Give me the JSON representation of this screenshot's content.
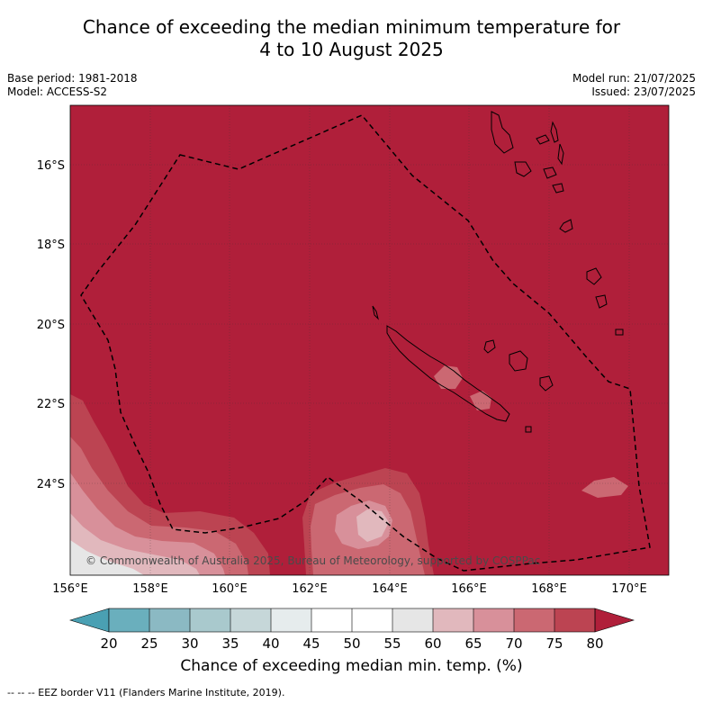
{
  "title": {
    "line1": "Chance of exceeding the median minimum temperature for",
    "line2": "4 to 10 August 2025"
  },
  "meta_left": {
    "base_period": "Base period: 1981-2018",
    "model": "Model: ACCESS-S2"
  },
  "meta_right": {
    "model_run": "Model run: 21/07/2025",
    "issued": "Issued: 23/07/2025"
  },
  "map": {
    "lat_labels": [
      "16°S",
      "18°S",
      "20°S",
      "22°S",
      "24°S"
    ],
    "lon_labels": [
      "156°E",
      "158°E",
      "160°E",
      "162°E",
      "164°E",
      "166°E",
      "168°E",
      "170°E"
    ],
    "copyright": "© Commonwealth of Australia 2025, Bureau of Meteorology, supported by COSPPac",
    "background_color": "#b01f3a"
  },
  "colorbar": {
    "ticks": [
      "20",
      "25",
      "30",
      "35",
      "40",
      "45",
      "50",
      "55",
      "60",
      "65",
      "70",
      "75",
      "80"
    ],
    "colors": [
      "#4aa0b3",
      "#6aafbd",
      "#8bb9c3",
      "#a9c9cd",
      "#c6d7d9",
      "#e6eced",
      "#ffffff",
      "#ffffff",
      "#e6e6e6",
      "#e1b8bd",
      "#d8909a",
      "#cb6872",
      "#bc4452",
      "#b01f3a"
    ],
    "label": "Chance of exceeding median min. temp. (%)"
  },
  "footnote": "-- -- -- EEZ border V11 (Flanders Marine Institute, 2019)."
}
